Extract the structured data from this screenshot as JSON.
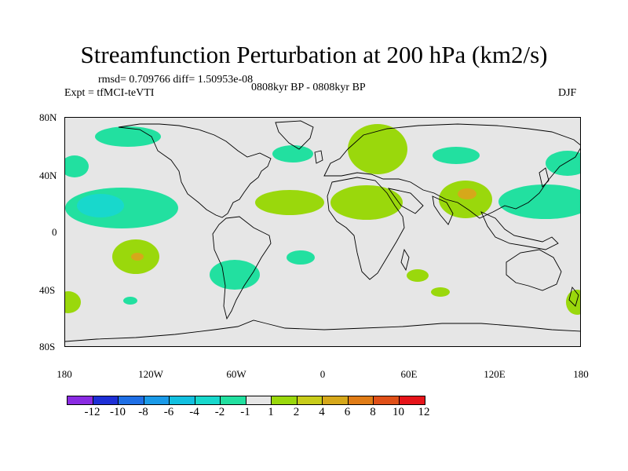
{
  "figure": {
    "title": "Streamfunction Perturbation at 200 hPa (km2/s)",
    "stats": "rmsd= 0.709766  diff= 1.50953e-08",
    "expt": "Expt = tfMCI-teVTI",
    "period": "0808kyr BP - 0808kyr BP",
    "season": "DJF"
  },
  "axes": {
    "lat_labels": [
      "80N",
      "40N",
      "0",
      "40S",
      "80S"
    ],
    "lon_labels": [
      "180",
      "120W",
      "60W",
      "0",
      "60E",
      "120E",
      "180"
    ]
  },
  "legend": {
    "labels": [
      "-12",
      "-10",
      "-8",
      "-6",
      "-4",
      "-2",
      "-1",
      "1",
      "2",
      "4",
      "6",
      "8",
      "10",
      "12"
    ],
    "colors": [
      "#8a2be2",
      "#1e2fd6",
      "#1f6fe6",
      "#1a9ae8",
      "#12c0e0",
      "#18d8cc",
      "#22e0a0",
      "#e6e6e6",
      "#9ad80c",
      "#c8cc1a",
      "#d6a81a",
      "#e07c16",
      "#e05018",
      "#e6141a"
    ]
  },
  "map_colors": {
    "background": "#e6e6e6",
    "neg1": "#22e0a0",
    "neg2": "#18d8cc",
    "pos1": "#9ad80c",
    "pos2": "#d6a81a"
  }
}
